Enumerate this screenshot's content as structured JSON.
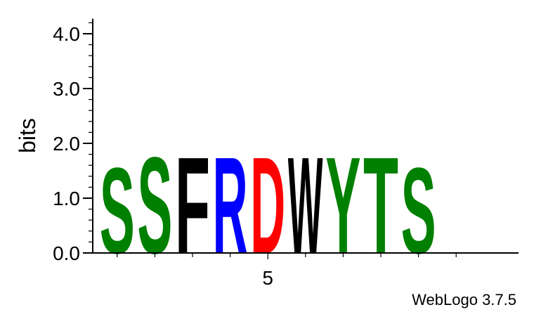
{
  "chart_data": {
    "type": "sequence-logo",
    "ylabel": "bits",
    "ylim": [
      0,
      4.3
    ],
    "yticks": [
      "0.0",
      "1.0",
      "2.0",
      "3.0",
      "4.0"
    ],
    "xtick_labels": [
      {
        "position": 5,
        "label": "5"
      }
    ],
    "positions": [
      1,
      2,
      3,
      4,
      5,
      6,
      7,
      8,
      9,
      10
    ],
    "stacks": [
      {
        "position": 1,
        "letters": [
          {
            "letter": "S",
            "bits": 1.6,
            "color": "#008000"
          }
        ]
      },
      {
        "position": 2,
        "letters": [
          {
            "letter": "S",
            "bits": 1.8,
            "color": "#008000"
          }
        ]
      },
      {
        "position": 3,
        "letters": [
          {
            "letter": "F",
            "bits": 1.8,
            "color": "#000000"
          }
        ]
      },
      {
        "position": 4,
        "letters": [
          {
            "letter": "R",
            "bits": 1.8,
            "color": "#0000ff"
          }
        ]
      },
      {
        "position": 5,
        "letters": [
          {
            "letter": "D",
            "bits": 1.8,
            "color": "#ff0000"
          }
        ]
      },
      {
        "position": 6,
        "letters": [
          {
            "letter": "W",
            "bits": 1.8,
            "color": "#000000"
          }
        ]
      },
      {
        "position": 7,
        "letters": [
          {
            "letter": "Y",
            "bits": 1.8,
            "color": "#008000"
          }
        ]
      },
      {
        "position": 8,
        "letters": [
          {
            "letter": "T",
            "bits": 1.8,
            "color": "#008000"
          }
        ]
      },
      {
        "position": 9,
        "letters": [
          {
            "letter": "S",
            "bits": 1.6,
            "color": "#008000"
          }
        ]
      }
    ]
  },
  "credit": "WebLogo 3.7.5"
}
